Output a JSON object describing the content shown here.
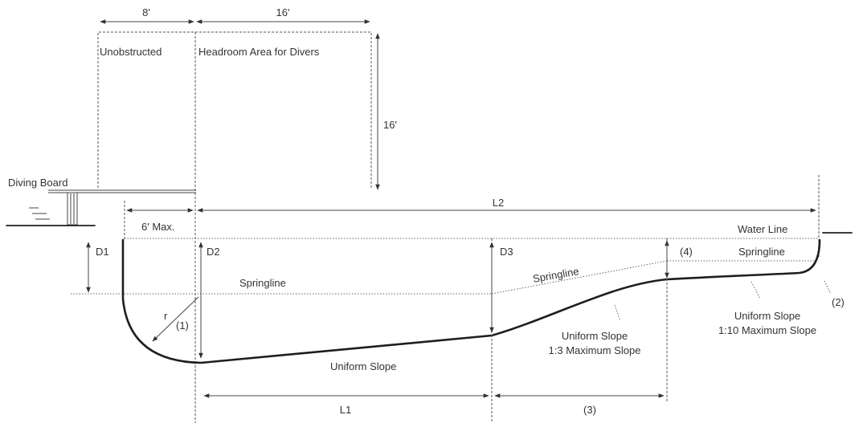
{
  "diagram": {
    "headroom": {
      "dim_left": "8'",
      "dim_top": "16'",
      "dim_height": "16'",
      "label_left": "Unobstructed",
      "label_right": "Headroom Area for Divers"
    },
    "diving_board": "Diving Board",
    "dims": {
      "six_max": "6' Max.",
      "l2": "L2",
      "l1": "L1",
      "d1": "D1",
      "d2": "D2",
      "d3": "D3",
      "r": "r"
    },
    "water_line": "Water Line",
    "springline": "Springline",
    "notes": {
      "n1": "(1)",
      "n2": "(2)",
      "n3": "(3)",
      "n4": "(4)"
    },
    "slopes": {
      "bottom": "Uniform Slope",
      "mid_line1": "Uniform Slope",
      "mid_line2": "1:3 Maximum Slope",
      "right_line1": "Uniform Slope",
      "right_line2": "1:10 Maximum Slope"
    }
  }
}
